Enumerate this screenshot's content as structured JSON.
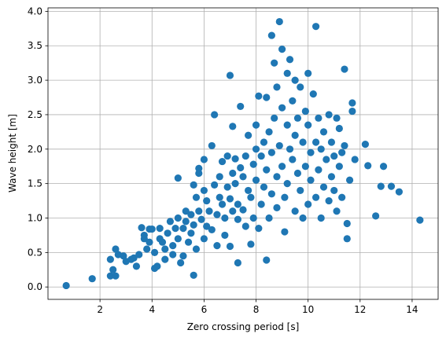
{
  "chart_data": {
    "type": "scatter",
    "title": "",
    "xlabel": "Zero crossing period [s]",
    "ylabel": "Wave height [m]",
    "xlim": [
      0.0,
      15.0
    ],
    "ylim": [
      -0.18,
      4.05
    ],
    "xticks": [
      2,
      4,
      6,
      8,
      10,
      12,
      14
    ],
    "yticks": [
      0.0,
      0.5,
      1.0,
      1.5,
      2.0,
      2.5,
      3.0,
      3.5,
      4.0
    ],
    "xtick_labels": [
      "2",
      "4",
      "6",
      "8",
      "10",
      "12",
      "14"
    ],
    "ytick_labels": [
      "0.0",
      "0.5",
      "1.0",
      "1.5",
      "2.0",
      "2.5",
      "3.0",
      "3.5",
      "4.0"
    ],
    "grid": true,
    "marker_color": "#1f77b4",
    "series": [
      {
        "points": [
          [
            0.7,
            0.02
          ],
          [
            1.7,
            0.12
          ],
          [
            2.4,
            0.16
          ],
          [
            2.6,
            0.16
          ],
          [
            2.5,
            0.25
          ],
          [
            2.4,
            0.4
          ],
          [
            2.6,
            0.55
          ],
          [
            2.7,
            0.47
          ],
          [
            2.9,
            0.45
          ],
          [
            3.0,
            0.37
          ],
          [
            3.2,
            0.4
          ],
          [
            3.3,
            0.42
          ],
          [
            3.4,
            0.3
          ],
          [
            3.5,
            0.47
          ],
          [
            3.6,
            0.86
          ],
          [
            3.7,
            0.75
          ],
          [
            3.7,
            0.7
          ],
          [
            3.8,
            0.55
          ],
          [
            3.9,
            0.84
          ],
          [
            3.9,
            0.65
          ],
          [
            4.0,
            0.84
          ],
          [
            4.1,
            0.5
          ],
          [
            4.1,
            0.27
          ],
          [
            4.2,
            0.3
          ],
          [
            4.3,
            0.7
          ],
          [
            4.3,
            0.85
          ],
          [
            4.4,
            0.65
          ],
          [
            4.5,
            0.55
          ],
          [
            4.5,
            0.4
          ],
          [
            4.6,
            0.78
          ],
          [
            4.7,
            0.95
          ],
          [
            4.8,
            0.6
          ],
          [
            4.8,
            0.47
          ],
          [
            4.9,
            0.85
          ],
          [
            5.0,
            1.0
          ],
          [
            5.0,
            0.7
          ],
          [
            5.0,
            1.58
          ],
          [
            5.1,
            0.35
          ],
          [
            5.2,
            0.45
          ],
          [
            5.2,
            0.85
          ],
          [
            5.3,
            1.1
          ],
          [
            5.3,
            0.95
          ],
          [
            5.4,
            0.65
          ],
          [
            5.5,
            0.78
          ],
          [
            5.5,
            1.05
          ],
          [
            5.6,
            0.17
          ],
          [
            5.6,
            0.9
          ],
          [
            5.6,
            1.48
          ],
          [
            5.7,
            1.3
          ],
          [
            5.7,
            0.55
          ],
          [
            5.8,
            1.1
          ],
          [
            5.8,
            1.65
          ],
          [
            5.8,
            1.72
          ],
          [
            5.9,
            0.98
          ],
          [
            6.0,
            1.4
          ],
          [
            6.0,
            0.7
          ],
          [
            6.0,
            1.85
          ],
          [
            6.1,
            0.88
          ],
          [
            6.1,
            1.25
          ],
          [
            6.2,
            1.1
          ],
          [
            6.3,
            2.05
          ],
          [
            6.3,
            0.83
          ],
          [
            6.4,
            2.5
          ],
          [
            6.4,
            1.48
          ],
          [
            6.5,
            1.05
          ],
          [
            6.5,
            0.6
          ],
          [
            6.6,
            1.6
          ],
          [
            6.6,
            1.3
          ],
          [
            6.7,
            1.82
          ],
          [
            6.7,
            1.2
          ],
          [
            6.8,
            1.0
          ],
          [
            6.8,
            0.75
          ],
          [
            6.9,
            1.9
          ],
          [
            6.9,
            1.45
          ],
          [
            7.0,
            1.28
          ],
          [
            7.0,
            0.59
          ],
          [
            7.0,
            3.07
          ],
          [
            7.1,
            1.1
          ],
          [
            7.1,
            1.65
          ],
          [
            7.1,
            2.33
          ],
          [
            7.2,
            1.86
          ],
          [
            7.2,
            1.5
          ],
          [
            7.3,
            0.35
          ],
          [
            7.3,
            1.2
          ],
          [
            7.3,
            0.98
          ],
          [
            7.4,
            2.62
          ],
          [
            7.4,
            1.73
          ],
          [
            7.5,
            1.6
          ],
          [
            7.5,
            1.12
          ],
          [
            7.6,
            0.88
          ],
          [
            7.6,
            1.9
          ],
          [
            7.7,
            1.4
          ],
          [
            7.7,
            2.2
          ],
          [
            7.8,
            1.3
          ],
          [
            7.8,
            0.62
          ],
          [
            7.9,
            1.78
          ],
          [
            7.9,
            1.0
          ],
          [
            8.0,
            2.35
          ],
          [
            8.0,
            1.55
          ],
          [
            8.0,
            2.0
          ],
          [
            8.1,
            0.85
          ],
          [
            8.1,
            2.77
          ],
          [
            8.2,
            1.2
          ],
          [
            8.2,
            1.9
          ],
          [
            8.3,
            2.1
          ],
          [
            8.3,
            1.45
          ],
          [
            8.4,
            0.39
          ],
          [
            8.4,
            2.75
          ],
          [
            8.4,
            1.7
          ],
          [
            8.5,
            1.0
          ],
          [
            8.5,
            2.25
          ],
          [
            8.6,
            3.65
          ],
          [
            8.6,
            1.35
          ],
          [
            8.6,
            1.95
          ],
          [
            8.7,
            3.25
          ],
          [
            8.7,
            2.45
          ],
          [
            8.8,
            1.15
          ],
          [
            8.8,
            2.9
          ],
          [
            8.8,
            1.6
          ],
          [
            8.9,
            3.85
          ],
          [
            8.9,
            2.05
          ],
          [
            9.0,
            1.75
          ],
          [
            9.0,
            3.45
          ],
          [
            9.0,
            2.6
          ],
          [
            9.1,
            1.3
          ],
          [
            9.1,
            0.8
          ],
          [
            9.2,
            2.35
          ],
          [
            9.2,
            3.1
          ],
          [
            9.2,
            1.5
          ],
          [
            9.3,
            2.0
          ],
          [
            9.3,
            3.3
          ],
          [
            9.4,
            1.85
          ],
          [
            9.4,
            2.7
          ],
          [
            9.5,
            1.1
          ],
          [
            9.5,
            2.2
          ],
          [
            9.5,
            3.0
          ],
          [
            9.6,
            1.65
          ],
          [
            9.6,
            2.45
          ],
          [
            9.7,
            1.4
          ],
          [
            9.7,
            2.9
          ],
          [
            9.8,
            2.1
          ],
          [
            9.8,
            1.0
          ],
          [
            9.9,
            1.75
          ],
          [
            9.9,
            2.55
          ],
          [
            10.0,
            3.1
          ],
          [
            10.0,
            1.2
          ],
          [
            10.0,
            2.35
          ],
          [
            10.1,
            1.95
          ],
          [
            10.1,
            1.55
          ],
          [
            10.2,
            2.8
          ],
          [
            10.3,
            3.78
          ],
          [
            10.3,
            1.3
          ],
          [
            10.3,
            2.1
          ],
          [
            10.4,
            1.7
          ],
          [
            10.4,
            2.45
          ],
          [
            10.5,
            2.0
          ],
          [
            10.5,
            1.0
          ],
          [
            10.6,
            1.45
          ],
          [
            10.6,
            2.25
          ],
          [
            10.7,
            1.85
          ],
          [
            10.8,
            2.5
          ],
          [
            10.8,
            1.25
          ],
          [
            10.9,
            1.6
          ],
          [
            10.9,
            2.1
          ],
          [
            11.0,
            1.4
          ],
          [
            11.0,
            1.9
          ],
          [
            11.1,
            2.45
          ],
          [
            11.1,
            1.1
          ],
          [
            11.2,
            1.75
          ],
          [
            11.2,
            2.3
          ],
          [
            11.3,
            1.3
          ],
          [
            11.3,
            1.95
          ],
          [
            11.4,
            3.16
          ],
          [
            11.4,
            2.05
          ],
          [
            11.5,
            0.7
          ],
          [
            11.5,
            0.92
          ],
          [
            11.6,
            1.55
          ],
          [
            11.7,
            2.55
          ],
          [
            11.7,
            2.67
          ],
          [
            11.8,
            1.85
          ],
          [
            12.2,
            2.07
          ],
          [
            12.3,
            1.76
          ],
          [
            12.6,
            1.03
          ],
          [
            12.8,
            1.46
          ],
          [
            12.9,
            1.75
          ],
          [
            13.2,
            1.46
          ],
          [
            13.5,
            1.38
          ],
          [
            14.3,
            0.97
          ]
        ]
      }
    ]
  }
}
